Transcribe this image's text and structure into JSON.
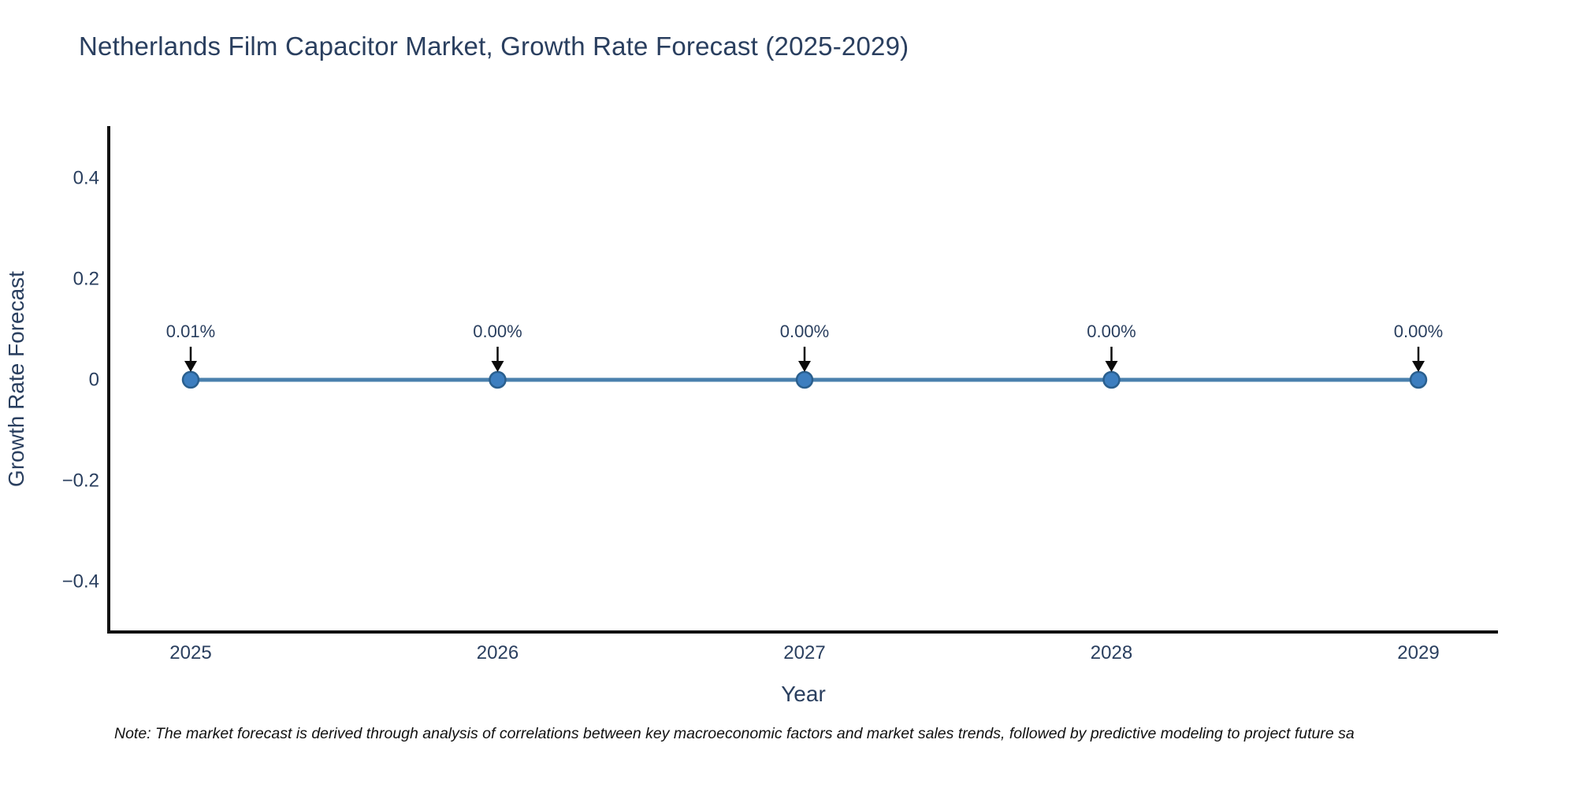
{
  "title": {
    "text": "Netherlands Film Capacitor Market, Growth Rate Forecast (2025-2029)",
    "color": "#2a3f5f"
  },
  "note": {
    "text": "Note: The market forecast is derived through analysis of correlations between key macroeconomic factors and market sales trends, followed by predictive modeling to project future sa"
  },
  "chart_data": {
    "type": "line",
    "title": "Netherlands Film Capacitor Market, Growth Rate Forecast (2025-2029)",
    "xlabel": "Year",
    "ylabel": "Growth Rate Forecast",
    "categories": [
      "2025",
      "2026",
      "2027",
      "2028",
      "2029"
    ],
    "series": [
      {
        "name": "Growth Rate Forecast",
        "values": [
          0.0001,
          0.0,
          0.0,
          0.0,
          0.0
        ]
      }
    ],
    "point_labels": [
      "0.01%",
      "0.00%",
      "0.00%",
      "0.00%",
      "0.00%"
    ],
    "yticks": [
      {
        "value": 0.4,
        "label": "0.4"
      },
      {
        "value": 0.2,
        "label": "0.2"
      },
      {
        "value": 0,
        "label": "0"
      },
      {
        "value": -0.2,
        "label": "−0.2"
      },
      {
        "value": -0.4,
        "label": "−0.4"
      }
    ],
    "ylim": [
      -0.5,
      0.5
    ],
    "grid": false,
    "legend": false,
    "annotations_have_arrows": true,
    "colors": {
      "line": "#4a80ad",
      "marker_fill": "#3d7ebf",
      "marker_edge": "#2a5f8e",
      "arrow": "#0b0b0b",
      "axis": "#111111",
      "tick_text": "#2a3f5f",
      "annotation_text": "#2a3f5f",
      "axis_title_text": "#2a3f5f"
    }
  }
}
